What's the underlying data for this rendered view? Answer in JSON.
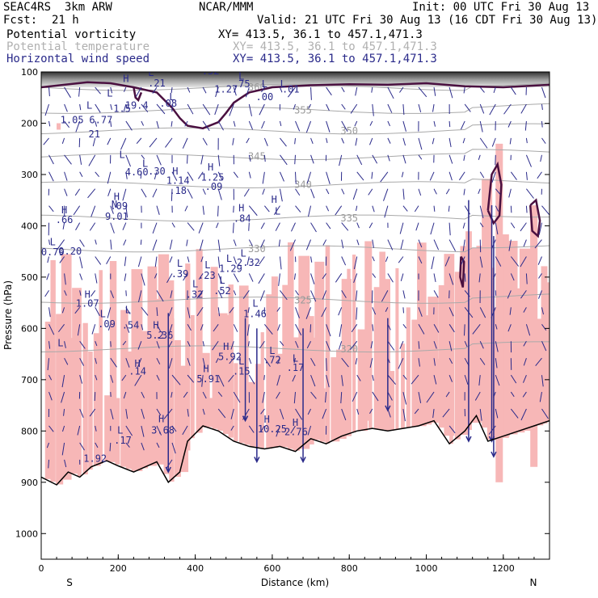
{
  "header": {
    "model": "SEAC4RS  3km ARW",
    "org": "NCAR/MMM",
    "init": "Init: 00 UTC Fri 30 Aug 13",
    "fcst_label": "Fcst:",
    "fcst_value": "21 h",
    "valid": "Valid: 21 UTC Fri 30 Aug 13 (16 CDT Fri 30 Aug 13)"
  },
  "legend": [
    {
      "name": "Potential vorticity",
      "xy": "XY= 413.5, 36.1 to 457.1,471.3",
      "color": "#000000"
    },
    {
      "name": "Potential temperature",
      "xy": "XY= 413.5, 36.1 to 457.1,471.3",
      "color": "#b0b0b0"
    },
    {
      "name": "Horizontal wind speed",
      "xy": "XY= 413.5, 36.1 to 457.1,471.3",
      "color": "#2a2a8a"
    }
  ],
  "chart_data": {
    "type": "cross-section",
    "xlabel": "Distance (km)",
    "ylabel": "Pressure (hPa)",
    "xlim": [
      0,
      1320
    ],
    "ylim": [
      1050,
      100
    ],
    "x_ticks": [
      "0",
      "200",
      "400",
      "600",
      "800",
      "1000",
      "1200"
    ],
    "y_ticks": [
      "100",
      "200",
      "300",
      "400",
      "500",
      "600",
      "700",
      "800",
      "900",
      "1000"
    ],
    "x_tick_values": [
      0,
      200,
      400,
      600,
      800,
      1000,
      1200
    ],
    "y_tick_values": [
      100,
      200,
      300,
      400,
      500,
      600,
      700,
      800,
      900,
      1000
    ],
    "endpoints": {
      "left": "S",
      "right": "N"
    },
    "theta_contours": [
      {
        "label": "360",
        "p": 130
      },
      {
        "label": "355",
        "p": 175
      },
      {
        "label": "350",
        "p": 215
      },
      {
        "label": "345",
        "p": 265
      },
      {
        "label": "340",
        "p": 320
      },
      {
        "label": "335",
        "p": 385
      },
      {
        "label": "330",
        "p": 445
      },
      {
        "label": "325",
        "p": 545
      },
      {
        "label": "320",
        "p": 640
      }
    ],
    "terrain_pressure": [
      [
        0,
        890
      ],
      [
        40,
        905
      ],
      [
        70,
        880
      ],
      [
        100,
        890
      ],
      [
        130,
        870
      ],
      [
        170,
        858
      ],
      [
        200,
        868
      ],
      [
        240,
        880
      ],
      [
        300,
        860
      ],
      [
        330,
        900
      ],
      [
        360,
        880
      ],
      [
        380,
        820
      ],
      [
        420,
        790
      ],
      [
        460,
        800
      ],
      [
        500,
        820
      ],
      [
        540,
        830
      ],
      [
        580,
        835
      ],
      [
        620,
        830
      ],
      [
        660,
        840
      ],
      [
        700,
        815
      ],
      [
        740,
        825
      ],
      [
        780,
        810
      ],
      [
        820,
        800
      ],
      [
        860,
        795
      ],
      [
        900,
        800
      ],
      [
        940,
        795
      ],
      [
        980,
        790
      ],
      [
        1020,
        780
      ],
      [
        1060,
        825
      ],
      [
        1100,
        800
      ],
      [
        1130,
        770
      ],
      [
        1160,
        820
      ],
      [
        1200,
        810
      ],
      [
        1240,
        800
      ],
      [
        1280,
        790
      ],
      [
        1320,
        780
      ]
    ],
    "hl_markers": [
      {
        "t": "L",
        "x": 30,
        "p": 438
      },
      {
        "t": "0.79",
        "x": 30,
        "p": 458
      },
      {
        "t": "0.20",
        "x": 75,
        "p": 456
      },
      {
        "t": "L",
        "x": 50,
        "p": 635
      },
      {
        "t": "H",
        "x": 60,
        "p": 376
      },
      {
        "t": ".66",
        "x": 60,
        "p": 395
      },
      {
        "t": "L",
        "x": 125,
        "p": 172
      },
      {
        "t": "1.05",
        "x": 80,
        "p": 200
      },
      {
        "t": "6.77",
        "x": 155,
        "p": 200
      },
      {
        "t": "L",
        "x": 210,
        "p": 268
      },
      {
        "t": "4.60",
        "x": 248,
        "p": 302
      },
      {
        "t": "L",
        "x": 270,
        "p": 285
      },
      {
        "t": ".30",
        "x": 300,
        "p": 300
      },
      {
        "t": "L",
        "x": 178,
        "p": 148
      },
      {
        "t": "1.5",
        "x": 210,
        "p": 178
      },
      {
        "t": "H",
        "x": 220,
        "p": 120
      },
      {
        "t": "19.4",
        "x": 248,
        "p": 172
      },
      {
        "t": "L",
        "x": 285,
        "p": 108
      },
      {
        "t": ".21",
        "x": 300,
        "p": 128
      },
      {
        "t": "21",
        "x": 138,
        "p": 228
      },
      {
        "t": "H",
        "x": 196,
        "p": 350
      },
      {
        "t": ".09",
        "x": 202,
        "p": 368
      },
      {
        "t": "N",
        "x": 190,
        "p": 365
      },
      {
        "t": "9.01",
        "x": 196,
        "p": 388
      },
      {
        "t": "H",
        "x": 120,
        "p": 540
      },
      {
        "t": "1.07",
        "x": 120,
        "p": 558
      },
      {
        "t": "L",
        "x": 160,
        "p": 578
      },
      {
        "t": ".09",
        "x": 170,
        "p": 598
      },
      {
        "t": "L",
        "x": 225,
        "p": 570
      },
      {
        "t": ".54",
        "x": 232,
        "p": 600
      },
      {
        "t": "H",
        "x": 250,
        "p": 675
      },
      {
        "t": ".14",
        "x": 250,
        "p": 690
      },
      {
        "t": "H",
        "x": 298,
        "p": 600
      },
      {
        "t": "5.2",
        "x": 296,
        "p": 620
      },
      {
        "t": ".36",
        "x": 320,
        "p": 620
      },
      {
        "t": "L",
        "x": 205,
        "p": 805
      },
      {
        "t": ".17",
        "x": 212,
        "p": 825
      },
      {
        "t": "1.92",
        "x": 140,
        "p": 860
      },
      {
        "t": "H",
        "x": 312,
        "p": 783
      },
      {
        "t": "3.68",
        "x": 316,
        "p": 805
      },
      {
        "t": "L",
        "x": 360,
        "p": 480
      },
      {
        "t": ".39",
        "x": 360,
        "p": 500
      },
      {
        "t": "L",
        "x": 400,
        "p": 520
      },
      {
        "t": ".32",
        "x": 398,
        "p": 540
      },
      {
        "t": "L",
        "x": 432,
        "p": 483
      },
      {
        "t": ".23",
        "x": 430,
        "p": 503
      },
      {
        "t": "L",
        "x": 470,
        "p": 513
      },
      {
        "t": ".52",
        "x": 470,
        "p": 533
      },
      {
        "t": "L",
        "x": 488,
        "p": 470
      },
      {
        "t": "1.29",
        "x": 492,
        "p": 490
      },
      {
        "t": "L",
        "x": 525,
        "p": 460
      },
      {
        "t": "2.32",
        "x": 538,
        "p": 478
      },
      {
        "t": "L",
        "x": 556,
        "p": 558
      },
      {
        "t": "1.46",
        "x": 555,
        "p": 578
      },
      {
        "t": "H",
        "x": 348,
        "p": 300
      },
      {
        "t": "1.14",
        "x": 355,
        "p": 318
      },
      {
        "t": ".18",
        "x": 355,
        "p": 338
      },
      {
        "t": "H",
        "x": 440,
        "p": 292
      },
      {
        "t": "1.25",
        "x": 445,
        "p": 312
      },
      {
        "t": ".09",
        "x": 448,
        "p": 330
      },
      {
        "t": "H",
        "x": 520,
        "p": 372
      },
      {
        "t": ".84",
        "x": 522,
        "p": 392
      },
      {
        "t": "H",
        "x": 428,
        "p": 685
      },
      {
        "t": "5.91",
        "x": 434,
        "p": 705
      },
      {
        "t": "H",
        "x": 480,
        "p": 642
      },
      {
        "t": "5.92",
        "x": 490,
        "p": 662
      },
      {
        "t": "L",
        "x": 520,
        "p": 670
      },
      {
        "t": ".15",
        "x": 520,
        "p": 690
      },
      {
        "t": "H",
        "x": 586,
        "p": 784
      },
      {
        "t": "10.25",
        "x": 600,
        "p": 803
      },
      {
        "t": "L",
        "x": 600,
        "p": 650
      },
      {
        "t": ".72",
        "x": 600,
        "p": 668
      },
      {
        "t": "L",
        "x": 660,
        "p": 665
      },
      {
        "t": ".17",
        "x": 660,
        "p": 683
      },
      {
        "t": "H",
        "x": 660,
        "p": 790
      },
      {
        "t": "2.76",
        "x": 662,
        "p": 808
      },
      {
        "t": "H",
        "x": 605,
        "p": 355
      },
      {
        "t": "L",
        "x": 614,
        "p": 378
      },
      {
        "t": "L",
        "x": 580,
        "p": 130
      },
      {
        "t": ".00",
        "x": 580,
        "p": 155
      },
      {
        "t": "L",
        "x": 628,
        "p": 130
      },
      {
        "t": ".01",
        "x": 648,
        "p": 140
      },
      {
        "t": "L",
        "x": 520,
        "p": 115
      },
      {
        "t": ".75",
        "x": 520,
        "p": 130
      },
      {
        "t": "1.27",
        "x": 480,
        "p": 140
      },
      {
        "t": "L",
        "x": 420,
        "p": 100
      },
      {
        "t": ".52",
        "x": 440,
        "p": 105
      },
      {
        "t": "L",
        "x": 340,
        "p": 155
      },
      {
        "t": ".08",
        "x": 330,
        "p": 168
      }
    ]
  }
}
